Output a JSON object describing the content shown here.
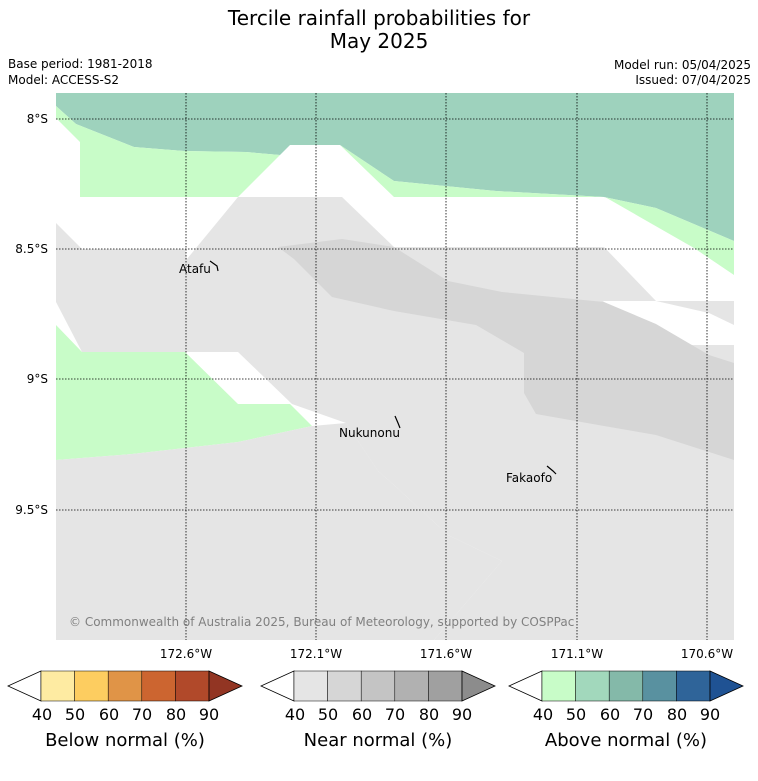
{
  "header": {
    "title_line1": "Tercile rainfall probabilities for",
    "title_line2": "May 2025",
    "base_period": "Base period: 1981-2018",
    "model": "Model: ACCESS-S2",
    "model_run": "Model run: 05/04/2025",
    "issued": "Issued: 07/04/2025"
  },
  "map": {
    "lat_labels": [
      "8°S",
      "8.5°S",
      "9°S",
      "9.5°S"
    ],
    "lon_labels": [
      "172.6°W",
      "172.1°W",
      "171.6°W",
      "171.1°W",
      "170.6°W"
    ],
    "places": [
      {
        "name": "Atafu"
      },
      {
        "name": "Nukunonu"
      },
      {
        "name": "Fakaofo"
      }
    ],
    "copyright": "© Commonwealth of Australia 2025, Bureau of Meteorology, supported by COSPPac"
  },
  "colorbars": [
    {
      "label": "Below normal (%)",
      "ticks": [
        "40",
        "50",
        "60",
        "70",
        "80",
        "90"
      ],
      "colors": [
        "#ffffff",
        "#feeba2",
        "#fdcd60",
        "#e09447",
        "#cc6530",
        "#b1492a",
        "#923523"
      ]
    },
    {
      "label": "Near normal (%)",
      "ticks": [
        "40",
        "50",
        "60",
        "70",
        "80",
        "90"
      ],
      "colors": [
        "#ffffff",
        "#e5e5e5",
        "#d6d6d6",
        "#c4c4c4",
        "#b1b1b1",
        "#a0a0a0",
        "#8c8c8c"
      ]
    },
    {
      "label": "Above normal (%)",
      "ticks": [
        "40",
        "50",
        "60",
        "70",
        "80",
        "90"
      ],
      "colors": [
        "#ffffff",
        "#c8fcc8",
        "#a2d8bc",
        "#84b9a9",
        "#5991a0",
        "#2f6499",
        "#1f5293"
      ]
    }
  ]
}
